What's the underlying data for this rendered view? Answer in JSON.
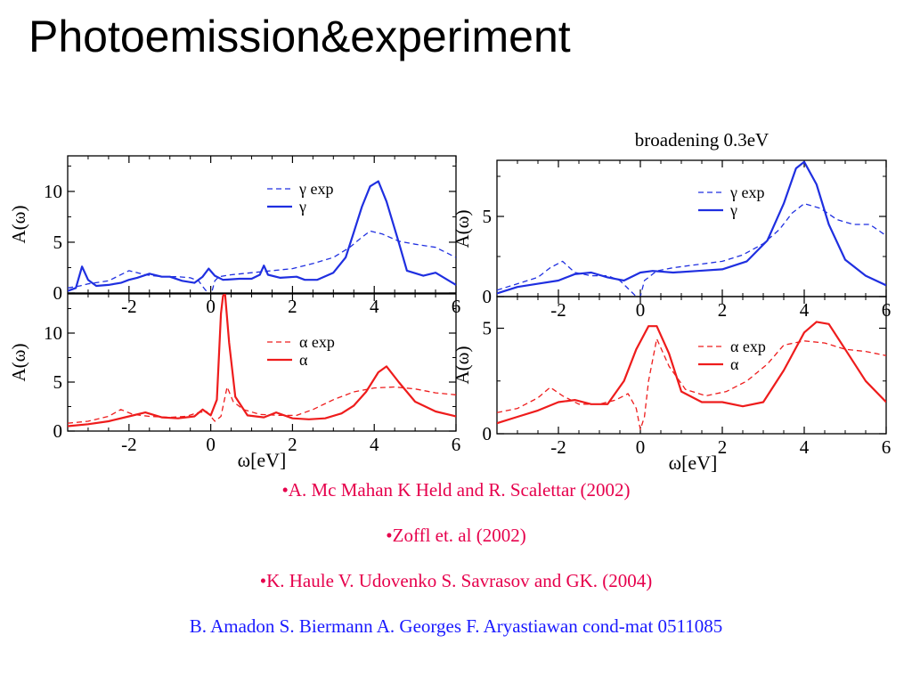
{
  "slide_title": "Photoemission&experiment",
  "chart_data": [
    {
      "type": "line",
      "panel": "left-top",
      "title": "",
      "xlabel": "",
      "ylabel": "A(ω)",
      "xlim": [
        -3.5,
        6
      ],
      "ylim": [
        0,
        13.5
      ],
      "xticks": [
        -2,
        0,
        2,
        4,
        6
      ],
      "xtick_labels": [
        "-2",
        "0",
        "2",
        "4",
        "6"
      ],
      "yticks": [
        0,
        5,
        10
      ],
      "ytick_labels": [
        "0",
        "5",
        "10"
      ],
      "legend_position": "top-center",
      "color": "#1f2fe0",
      "series": [
        {
          "name": "γ exp",
          "style": "dashed",
          "points": [
            [
              -3.5,
              0.5
            ],
            [
              -3.2,
              0.7
            ],
            [
              -3,
              0.9
            ],
            [
              -2.5,
              1.2
            ],
            [
              -2,
              2.2
            ],
            [
              -1.6,
              1.8
            ],
            [
              -1.2,
              1.6
            ],
            [
              -0.8,
              1.6
            ],
            [
              -0.5,
              1.5
            ],
            [
              -0.3,
              1.2
            ],
            [
              -0.15,
              0.4
            ],
            [
              0,
              -0.3
            ],
            [
              0.1,
              1.2
            ],
            [
              0.2,
              1.6
            ],
            [
              0.5,
              1.8
            ],
            [
              1,
              2
            ],
            [
              1.5,
              2.2
            ],
            [
              2,
              2.4
            ],
            [
              2.5,
              2.9
            ],
            [
              3,
              3.5
            ],
            [
              3.4,
              4.5
            ],
            [
              3.7,
              5.5
            ],
            [
              3.9,
              6.1
            ],
            [
              4.2,
              5.8
            ],
            [
              4.6,
              5.1
            ],
            [
              5,
              4.8
            ],
            [
              5.5,
              4.5
            ],
            [
              6,
              3.5
            ]
          ]
        },
        {
          "name": "γ",
          "style": "solid",
          "points": [
            [
              -3.5,
              0.2
            ],
            [
              -3.3,
              0.5
            ],
            [
              -3.15,
              2.6
            ],
            [
              -3,
              1.3
            ],
            [
              -2.8,
              0.7
            ],
            [
              -2.5,
              0.8
            ],
            [
              -2.2,
              1
            ],
            [
              -2,
              1.3
            ],
            [
              -1.8,
              1.5
            ],
            [
              -1.5,
              1.9
            ],
            [
              -1.2,
              1.6
            ],
            [
              -1,
              1.6
            ],
            [
              -0.7,
              1.2
            ],
            [
              -0.4,
              1
            ],
            [
              -0.2,
              1.6
            ],
            [
              -0.05,
              2.4
            ],
            [
              0.1,
              1.7
            ],
            [
              0.3,
              1.3
            ],
            [
              0.7,
              1.4
            ],
            [
              1,
              1.4
            ],
            [
              1.2,
              1.8
            ],
            [
              1.3,
              2.7
            ],
            [
              1.4,
              1.8
            ],
            [
              1.7,
              1.5
            ],
            [
              2.1,
              1.6
            ],
            [
              2.3,
              1.3
            ],
            [
              2.6,
              1.3
            ],
            [
              3,
              2
            ],
            [
              3.3,
              3.5
            ],
            [
              3.5,
              6
            ],
            [
              3.7,
              8.5
            ],
            [
              3.9,
              10.5
            ],
            [
              4.1,
              11
            ],
            [
              4.3,
              9
            ],
            [
              4.6,
              5
            ],
            [
              4.8,
              2.2
            ],
            [
              5.2,
              1.7
            ],
            [
              5.5,
              2
            ],
            [
              6,
              0.8
            ]
          ]
        }
      ]
    },
    {
      "type": "line",
      "panel": "left-bottom",
      "title": "",
      "xlabel": "ω[eV]",
      "ylabel": "A(ω)",
      "xlim": [
        -3.5,
        6
      ],
      "ylim": [
        0,
        14
      ],
      "xticks": [
        -2,
        0,
        2,
        4,
        6
      ],
      "xtick_labels": [
        "-2",
        "0",
        "2",
        "4",
        "6"
      ],
      "yticks": [
        0,
        5,
        10
      ],
      "ytick_labels": [
        "0",
        "5",
        "10"
      ],
      "legend_position": "top-center",
      "color": "#ee1c1c",
      "series": [
        {
          "name": "α exp",
          "style": "dashed",
          "points": [
            [
              -3.5,
              0.8
            ],
            [
              -3,
              1
            ],
            [
              -2.5,
              1.5
            ],
            [
              -2.2,
              2.2
            ],
            [
              -1.9,
              1.7
            ],
            [
              -1.5,
              1.5
            ],
            [
              -1,
              1.4
            ],
            [
              -0.6,
              1.5
            ],
            [
              -0.3,
              1.9
            ],
            [
              -0.1,
              2
            ],
            [
              0.1,
              1
            ],
            [
              0.25,
              1.5
            ],
            [
              0.4,
              4.5
            ],
            [
              0.55,
              3
            ],
            [
              0.8,
              2.2
            ],
            [
              1.2,
              1.7
            ],
            [
              1.7,
              1.6
            ],
            [
              2.1,
              1.6
            ],
            [
              2.5,
              2.2
            ],
            [
              3,
              3.2
            ],
            [
              3.5,
              4
            ],
            [
              4,
              4.4
            ],
            [
              4.5,
              4.5
            ],
            [
              5,
              4.3
            ],
            [
              5.5,
              3.9
            ],
            [
              6,
              3.7
            ]
          ]
        },
        {
          "name": "α",
          "style": "solid",
          "points": [
            [
              -3.5,
              0.5
            ],
            [
              -3,
              0.7
            ],
            [
              -2.5,
              1
            ],
            [
              -2,
              1.5
            ],
            [
              -1.6,
              1.9
            ],
            [
              -1.2,
              1.4
            ],
            [
              -0.8,
              1.3
            ],
            [
              -0.4,
              1.5
            ],
            [
              -0.2,
              2.2
            ],
            [
              0,
              1.6
            ],
            [
              0.15,
              3.2
            ],
            [
              0.25,
              12
            ],
            [
              0.3,
              13.8
            ],
            [
              0.35,
              14
            ],
            [
              0.45,
              9
            ],
            [
              0.6,
              3.5
            ],
            [
              0.9,
              1.6
            ],
            [
              1.3,
              1.4
            ],
            [
              1.6,
              1.9
            ],
            [
              2,
              1.3
            ],
            [
              2.4,
              1.2
            ],
            [
              2.8,
              1.3
            ],
            [
              3.2,
              1.8
            ],
            [
              3.5,
              2.6
            ],
            [
              3.8,
              4
            ],
            [
              4.1,
              6
            ],
            [
              4.3,
              6.6
            ],
            [
              4.6,
              5
            ],
            [
              5,
              3
            ],
            [
              5.5,
              2
            ],
            [
              6,
              1.5
            ]
          ]
        }
      ]
    },
    {
      "type": "line",
      "panel": "right-top",
      "title": "broadening 0.3eV",
      "xlabel": "",
      "ylabel": "A(ω)",
      "xlim": [
        -3.5,
        6
      ],
      "ylim": [
        0,
        8.5
      ],
      "xticks": [
        -2,
        0,
        2,
        4,
        6
      ],
      "xtick_labels": [
        "-2",
        "0",
        "2",
        "4",
        "6"
      ],
      "yticks": [
        0,
        5
      ],
      "ytick_labels": [
        "0",
        "5"
      ],
      "legend_position": "top-center",
      "color": "#1f2fe0",
      "series": [
        {
          "name": "γ exp",
          "style": "dashed",
          "points": [
            [
              -3.5,
              0.4
            ],
            [
              -3,
              0.8
            ],
            [
              -2.5,
              1.2
            ],
            [
              -2.2,
              1.8
            ],
            [
              -1.9,
              2.2
            ],
            [
              -1.6,
              1.5
            ],
            [
              -1.2,
              1.3
            ],
            [
              -0.8,
              1.3
            ],
            [
              -0.5,
              1
            ],
            [
              -0.3,
              0.5
            ],
            [
              -0.1,
              0
            ],
            [
              0,
              0
            ],
            [
              0.1,
              1
            ],
            [
              0.4,
              1.6
            ],
            [
              0.8,
              1.8
            ],
            [
              1.4,
              2
            ],
            [
              2,
              2.2
            ],
            [
              2.5,
              2.6
            ],
            [
              3,
              3.3
            ],
            [
              3.4,
              4.2
            ],
            [
              3.7,
              5.2
            ],
            [
              4,
              5.8
            ],
            [
              4.4,
              5.5
            ],
            [
              4.8,
              4.8
            ],
            [
              5.2,
              4.5
            ],
            [
              5.6,
              4.5
            ],
            [
              6,
              3.8
            ]
          ]
        },
        {
          "name": "γ",
          "style": "solid",
          "points": [
            [
              -3.5,
              0.2
            ],
            [
              -3,
              0.6
            ],
            [
              -2.5,
              0.8
            ],
            [
              -2,
              1
            ],
            [
              -1.6,
              1.4
            ],
            [
              -1.2,
              1.5
            ],
            [
              -0.8,
              1.2
            ],
            [
              -0.4,
              1
            ],
            [
              0,
              1.5
            ],
            [
              0.3,
              1.6
            ],
            [
              0.8,
              1.5
            ],
            [
              1.4,
              1.6
            ],
            [
              2,
              1.7
            ],
            [
              2.6,
              2.2
            ],
            [
              3.1,
              3.5
            ],
            [
              3.5,
              5.8
            ],
            [
              3.8,
              8
            ],
            [
              4,
              8.4
            ],
            [
              4.3,
              7
            ],
            [
              4.6,
              4.5
            ],
            [
              5,
              2.3
            ],
            [
              5.5,
              1.3
            ],
            [
              6,
              0.7
            ]
          ]
        }
      ]
    },
    {
      "type": "line",
      "panel": "right-bottom",
      "title": "",
      "xlabel": "ω[eV]",
      "ylabel": "A(ω)",
      "xlim": [
        -3.5,
        6
      ],
      "ylim": [
        0,
        6.5
      ],
      "xticks": [
        -2,
        0,
        2,
        4,
        6
      ],
      "xtick_labels": [
        "-2",
        "0",
        "2",
        "4",
        "6"
      ],
      "yticks": [
        0,
        5
      ],
      "ytick_labels": [
        "0",
        "5"
      ],
      "legend_position": "top-center",
      "color": "#ee1c1c",
      "series": [
        {
          "name": "α exp",
          "style": "dashed",
          "points": [
            [
              -3.5,
              1
            ],
            [
              -3,
              1.2
            ],
            [
              -2.5,
              1.7
            ],
            [
              -2.2,
              2.2
            ],
            [
              -1.9,
              1.8
            ],
            [
              -1.5,
              1.4
            ],
            [
              -1,
              1.4
            ],
            [
              -0.6,
              1.6
            ],
            [
              -0.3,
              1.9
            ],
            [
              -0.1,
              1.2
            ],
            [
              0,
              0.2
            ],
            [
              0.1,
              0.8
            ],
            [
              0.2,
              2.5
            ],
            [
              0.4,
              4.5
            ],
            [
              0.7,
              3.2
            ],
            [
              1.1,
              2.1
            ],
            [
              1.6,
              1.8
            ],
            [
              2.1,
              2
            ],
            [
              2.6,
              2.5
            ],
            [
              3.1,
              3.3
            ],
            [
              3.5,
              4.2
            ],
            [
              4,
              4.4
            ],
            [
              4.5,
              4.3
            ],
            [
              5,
              4
            ],
            [
              5.5,
              3.9
            ],
            [
              6,
              3.7
            ]
          ]
        },
        {
          "name": "α",
          "style": "solid",
          "points": [
            [
              -3.5,
              0.5
            ],
            [
              -3,
              0.8
            ],
            [
              -2.5,
              1.1
            ],
            [
              -2,
              1.5
            ],
            [
              -1.6,
              1.6
            ],
            [
              -1.2,
              1.4
            ],
            [
              -0.8,
              1.4
            ],
            [
              -0.4,
              2.5
            ],
            [
              -0.1,
              4
            ],
            [
              0.2,
              5.1
            ],
            [
              0.4,
              5.1
            ],
            [
              0.7,
              3.8
            ],
            [
              1,
              2
            ],
            [
              1.5,
              1.5
            ],
            [
              2,
              1.5
            ],
            [
              2.5,
              1.3
            ],
            [
              3,
              1.5
            ],
            [
              3.5,
              3
            ],
            [
              4,
              4.8
            ],
            [
              4.3,
              5.3
            ],
            [
              4.6,
              5.2
            ],
            [
              5,
              4
            ],
            [
              5.5,
              2.5
            ],
            [
              6,
              1.5
            ]
          ]
        }
      ]
    }
  ],
  "references": [
    "•A. Mc Mahan K Held and R. Scalettar (2002)",
    "•Zoffl et. al (2002)",
    "•K. Haule V. Udovenko  S. Savrasov and GK. (2004)",
    "B. Amadon S. Biermann A. Georges F. Aryastiawan cond-mat 0511085"
  ]
}
